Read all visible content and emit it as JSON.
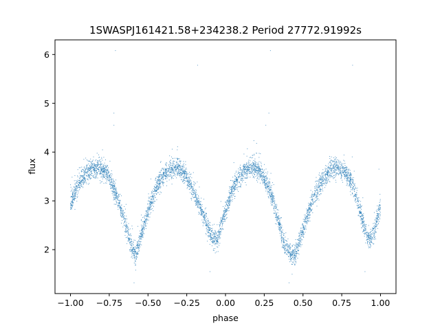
{
  "chart_data": {
    "type": "scatter",
    "title": "1SWASPJ161421.58+234238.2 Period 27772.91992s",
    "xlabel": "phase",
    "ylabel": "flux",
    "xlim": [
      -1.1,
      1.1
    ],
    "ylim": [
      1.1,
      6.3
    ],
    "xticks": [
      -1.0,
      -0.75,
      -0.5,
      -0.25,
      0.0,
      0.25,
      0.5,
      0.75,
      1.0
    ],
    "xtick_labels": [
      "−1.00",
      "−0.75",
      "−0.50",
      "−0.25",
      "0.00",
      "0.25",
      "0.50",
      "0.75",
      "1.00"
    ],
    "yticks": [
      2,
      3,
      4,
      5,
      6
    ],
    "ytick_labels": [
      "2",
      "3",
      "4",
      "5",
      "6"
    ],
    "grid": false,
    "marker_color": "#1f77b4",
    "series": [
      {
        "profile": {
          "phase": [
            -1.0,
            -0.97,
            -0.93,
            -0.88,
            -0.82,
            -0.76,
            -0.7,
            -0.65,
            -0.61,
            -0.58,
            -0.55,
            -0.5,
            -0.44,
            -0.38,
            -0.32,
            -0.27,
            -0.22,
            -0.17,
            -0.12,
            -0.08,
            -0.05,
            -0.02,
            0.0,
            0.03,
            0.07,
            0.12,
            0.17,
            0.22,
            0.26,
            0.3,
            0.34,
            0.38,
            0.42,
            0.45,
            0.5,
            0.56,
            0.62,
            0.68,
            0.73,
            0.78,
            0.82,
            0.86,
            0.9,
            0.93,
            0.96,
            1.0
          ],
          "flux": [
            2.9,
            3.2,
            3.45,
            3.6,
            3.7,
            3.55,
            3.1,
            2.6,
            2.1,
            1.9,
            2.2,
            2.8,
            3.3,
            3.6,
            3.7,
            3.6,
            3.3,
            2.9,
            2.5,
            2.2,
            2.2,
            2.6,
            2.8,
            3.1,
            3.4,
            3.6,
            3.7,
            3.6,
            3.4,
            3.1,
            2.6,
            2.1,
            1.9,
            1.9,
            2.4,
            3.0,
            3.4,
            3.65,
            3.7,
            3.55,
            3.35,
            2.9,
            2.4,
            2.2,
            2.4,
            2.9
          ]
        },
        "scatter_sigma": 0.1,
        "n_points": 5400,
        "outliers": [
          {
            "x": -0.71,
            "y": 6.08
          },
          {
            "x": 0.29,
            "y": 6.08
          },
          {
            "x": -0.18,
            "y": 5.78
          },
          {
            "x": 0.82,
            "y": 5.78
          },
          {
            "x": -0.72,
            "y": 4.8
          },
          {
            "x": 0.28,
            "y": 4.8
          },
          {
            "x": -0.72,
            "y": 4.55
          },
          {
            "x": 0.26,
            "y": 4.55
          },
          {
            "x": -0.59,
            "y": 1.32
          },
          {
            "x": 0.41,
            "y": 1.32
          },
          {
            "x": -0.1,
            "y": 1.55
          },
          {
            "x": 0.9,
            "y": 1.55
          },
          {
            "x": 0.99,
            "y": 3.65
          }
        ]
      }
    ]
  }
}
